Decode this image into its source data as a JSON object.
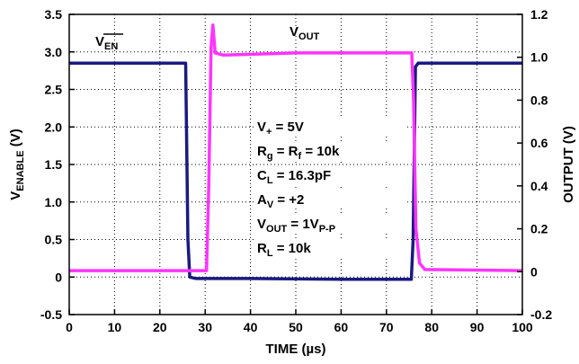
{
  "chart_data": {
    "type": "line",
    "xlabel": "TIME (µs)",
    "ylabel_left": {
      "main": "V",
      "sub": "ENABLE",
      "unit": " (V)"
    },
    "ylabel_right": "OUTPUT (V)",
    "xlim": [
      0,
      100
    ],
    "ylim_left": [
      -0.5,
      3.5
    ],
    "ylim_right": [
      -0.2,
      1.2
    ],
    "x_ticks": [
      "0",
      "10",
      "20",
      "30",
      "40",
      "50",
      "60",
      "70",
      "80",
      "90",
      "100"
    ],
    "y_left_ticks": [
      "-0.5",
      "0",
      "0.5",
      "1.0",
      "1.5",
      "2.0",
      "2.5",
      "3.0",
      "3.5"
    ],
    "y_right_ticks": [
      "-0.2",
      "0",
      "0.2",
      "0.4",
      "0.6",
      "0.8",
      "1.0",
      "1.2"
    ],
    "grid": true,
    "series": [
      {
        "name": "V_EN",
        "axis": "left",
        "color": "#1a1a80",
        "points": [
          [
            0,
            2.85
          ],
          [
            25.7,
            2.85
          ],
          [
            26.2,
            0.5
          ],
          [
            26.6,
            0.0
          ],
          [
            28,
            -0.02
          ],
          [
            40,
            -0.02
          ],
          [
            60,
            -0.03
          ],
          [
            75.5,
            -0.03
          ],
          [
            75.9,
            0.5
          ],
          [
            76.4,
            2.8
          ],
          [
            77,
            2.85
          ],
          [
            100,
            2.85
          ]
        ]
      },
      {
        "name": "V_OUT",
        "axis": "right",
        "color": "#ff33ff",
        "points": [
          [
            0,
            0.005
          ],
          [
            30.3,
            0.005
          ],
          [
            30.8,
            0.4
          ],
          [
            31.3,
            1.05
          ],
          [
            31.7,
            1.15
          ],
          [
            32.2,
            1.02
          ],
          [
            34,
            1.01
          ],
          [
            50,
            1.02
          ],
          [
            75.6,
            1.02
          ],
          [
            76,
            0.8
          ],
          [
            76.5,
            0.2
          ],
          [
            77.3,
            0.04
          ],
          [
            78.5,
            0.01
          ],
          [
            100,
            0.005
          ]
        ]
      }
    ],
    "annotations": {
      "ven_label": {
        "main": "V",
        "over": "EN"
      },
      "vout_label": {
        "main": "V",
        "sub": "OUT"
      },
      "conditions": [
        {
          "main": "V",
          "sub": "+",
          "rest": " = 5V"
        },
        {
          "main": "R",
          "sub": "g",
          "rest": " = R",
          "sub2": "f",
          "rest2": " = 10k"
        },
        {
          "main": "C",
          "sub": "L",
          "rest": " = 16.3pF"
        },
        {
          "main": "A",
          "sub": "V",
          "rest": " = +2"
        },
        {
          "main": "V",
          "sub": "OUT",
          "rest": " = 1V",
          "sub2": "P-P",
          "rest2": ""
        },
        {
          "main": "R",
          "sub": "L",
          "rest": " = 10k"
        }
      ]
    }
  }
}
